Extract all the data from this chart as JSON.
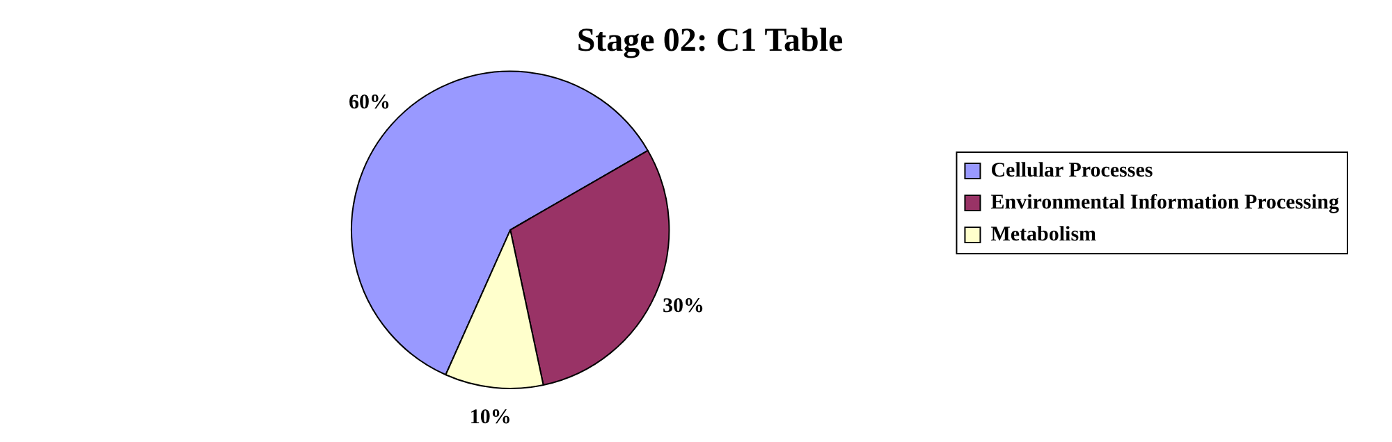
{
  "chart_data": {
    "type": "pie",
    "title": "Stage 02: C1 Table",
    "categories": [
      "Cellular Processes",
      "Environmental Information Processing",
      "Metabolism"
    ],
    "values": [
      60,
      30,
      10
    ],
    "value_labels": [
      "60%",
      "30%",
      "10%"
    ],
    "colors": [
      "#9999ff",
      "#993366",
      "#ffffcc"
    ],
    "legend": "right"
  }
}
